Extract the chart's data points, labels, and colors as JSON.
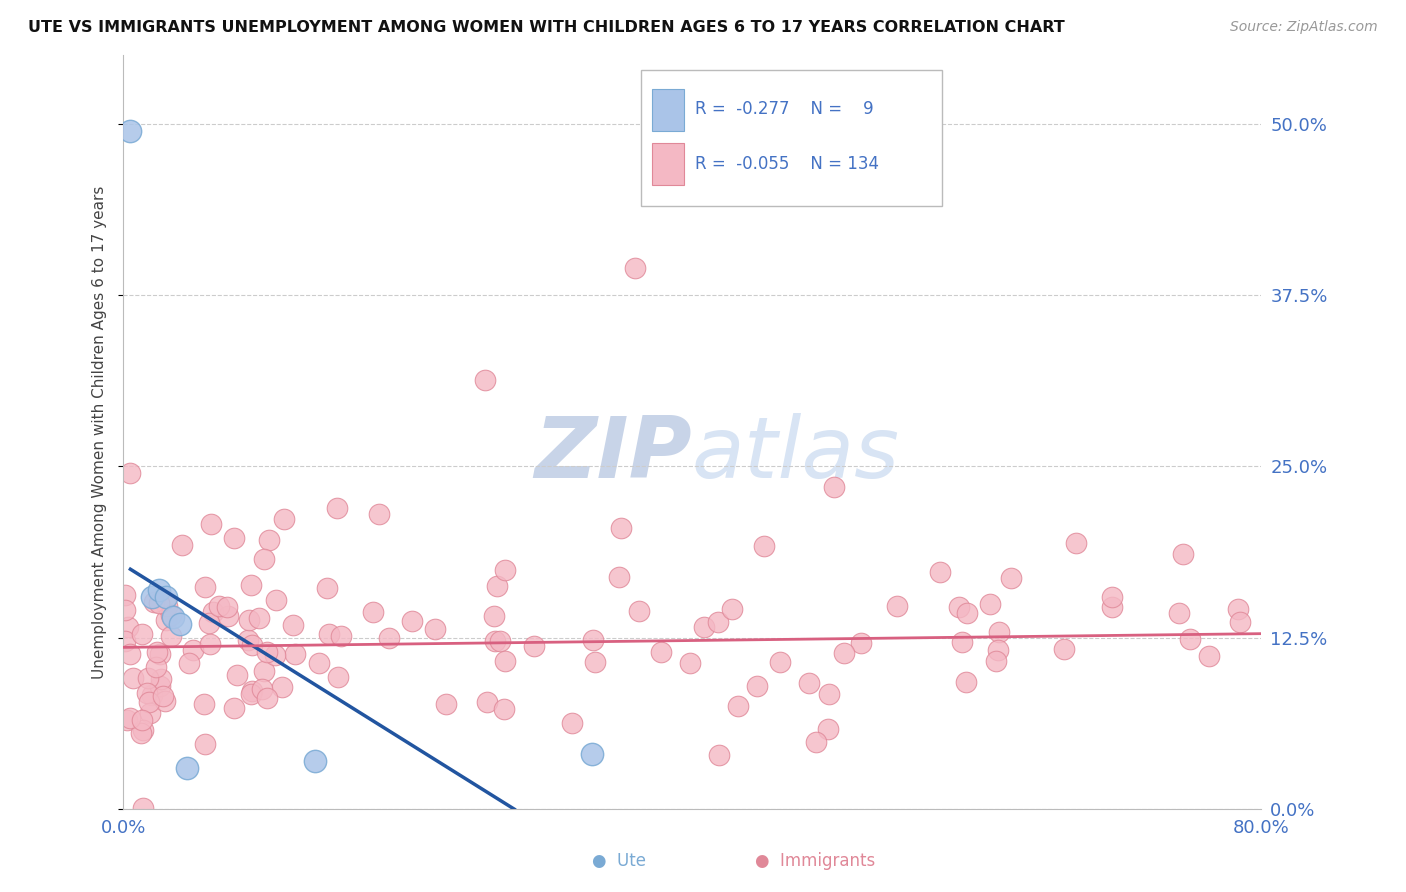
{
  "title": "UTE VS IMMIGRANTS UNEMPLOYMENT AMONG WOMEN WITH CHILDREN AGES 6 TO 17 YEARS CORRELATION CHART",
  "source": "Source: ZipAtlas.com",
  "ylabel": "Unemployment Among Women with Children Ages 6 to 17 years",
  "ute_R": -0.277,
  "ute_N": 9,
  "immigrants_R": -0.055,
  "immigrants_N": 134,
  "xlim": [
    0.0,
    0.8
  ],
  "ylim": [
    0.0,
    0.55
  ],
  "yticks": [
    0.0,
    0.125,
    0.25,
    0.375,
    0.5
  ],
  "ytick_labels": [
    "0.0%",
    "12.5%",
    "25.0%",
    "37.5%",
    "50.0%"
  ],
  "background_color": "#ffffff",
  "grid_color": "#cccccc",
  "ute_color": "#aac4e8",
  "ute_edge_color": "#7aaad4",
  "immigrants_color": "#f4b8c4",
  "immigrants_edge_color": "#e08898",
  "ute_line_color": "#2255a0",
  "immigrants_line_color": "#d86080",
  "watermark_color": "#dde4f0",
  "axis_label_color": "#4472c4",
  "ute_x": [
    0.005,
    0.02,
    0.025,
    0.03,
    0.035,
    0.04,
    0.045,
    0.135,
    0.33
  ],
  "ute_y": [
    0.495,
    0.155,
    0.16,
    0.155,
    0.14,
    0.135,
    0.03,
    0.035,
    0.04
  ],
  "ute_line_x0": 0.005,
  "ute_line_x1": 0.275,
  "ute_line_y0": 0.175,
  "ute_line_y1": 0.0,
  "imm_line_x0": 0.0,
  "imm_line_x1": 0.8,
  "imm_line_y0": 0.118,
  "imm_line_y1": 0.128
}
